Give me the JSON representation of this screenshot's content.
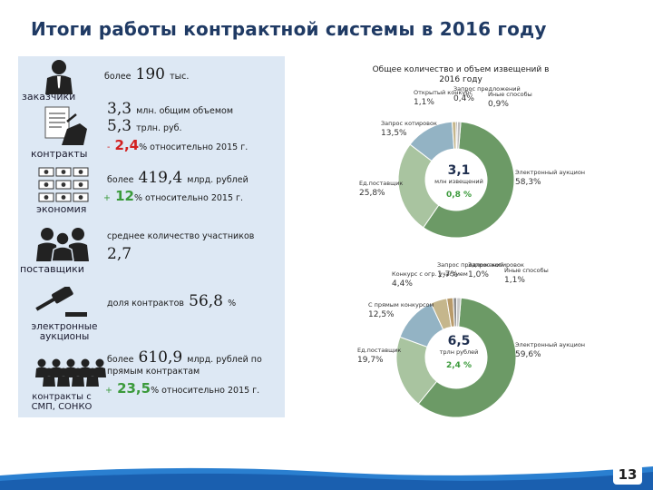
{
  "title": "Итоги работы контрактной системы в 2016 году",
  "page_number": "13",
  "left": {
    "customers": {
      "label": "заказчики",
      "prefix": "более",
      "value": "190",
      "unit": "тыс."
    },
    "contracts": {
      "label": "контракты",
      "volume_value": "3,3",
      "volume_text": "млн. общим объемом",
      "sum_value": "5,3",
      "sum_text": "трлн. руб.",
      "change_sign": "-",
      "change_value": "2,4",
      "change_text": "% относительно 2015 г."
    },
    "economy": {
      "label": "экономия",
      "prefix": "более",
      "value": "419,4",
      "unit": "млрд. рублей",
      "change_sign": "+",
      "change_value": "12",
      "change_text": "% относительно 2015 г."
    },
    "suppliers": {
      "label": "поставщики",
      "text": "среднее количество участников",
      "value": "2,7"
    },
    "auctions": {
      "label": "электронные аукционы",
      "text": "доля контрактов",
      "value": "56,8",
      "unit": "%"
    },
    "smp": {
      "label": "контракты с СМП, СОНКО",
      "prefix": "более",
      "value": "610,9",
      "text1": "млрд. рублей по",
      "text2": "прямым контрактам",
      "change_sign": "+",
      "change_value": "23,5",
      "change_text": "% относительно 2015 г."
    }
  },
  "chart_data": [
    {
      "type": "pie",
      "title": "Общее количество и объем извещений в 2016 году",
      "center_value": "3,1",
      "center_label": "млн извещений",
      "center_change": "0,8 %",
      "categories": [
        "электронный аукцион",
        "Единственный поставщик",
        "Запрос котировок",
        "Открытый конкурс",
        "Запрос предложений",
        "Иные способы"
      ],
      "labels": [
        "Электронный аукцион",
        "Ед.поставщик",
        "Запрос котировок",
        "Открытый конкурс",
        "Запрос предложений",
        "Иные способы"
      ],
      "values": [
        58.3,
        25.8,
        13.5,
        1.1,
        0.4,
        0.9
      ],
      "value_labels": [
        "58,3%",
        "25,8%",
        "13,5%",
        "1,1%",
        "0,4%",
        "0,9%"
      ],
      "colors": [
        "#6c9a66",
        "#a9c4a0",
        "#93b3c4",
        "#c5b68c",
        "#7d7d7d",
        "#bcbcbc"
      ]
    },
    {
      "type": "pie",
      "center_value": "6,5",
      "center_label": "трлн рублей",
      "center_change": "2,4 %",
      "categories": [
        "электронный аукцион",
        "Единственный поставщик",
        "С прямым конкурсом",
        "Конкурс с ограниченным участием",
        "Запрос предложений",
        "Запрос котировок",
        "Иные способы"
      ],
      "labels": [
        "Электронный аукцион",
        "Ед.поставщик",
        "С прямым конкурсом",
        "Конкурс с огр. участием",
        "Запрос предложений",
        "Запрос котировок",
        "Иные способы"
      ],
      "values": [
        59.6,
        19.7,
        12.5,
        4.4,
        1.7,
        1.0,
        1.1
      ],
      "value_labels": [
        "59,6%",
        "19,7%",
        "12,5%",
        "4,4%",
        "1,7%",
        "1,0%",
        "1,1%"
      ],
      "colors": [
        "#6c9a66",
        "#a9c4a0",
        "#93b3c4",
        "#c5b68c",
        "#b89a6a",
        "#8f8f8f",
        "#c9c9c9"
      ]
    }
  ]
}
